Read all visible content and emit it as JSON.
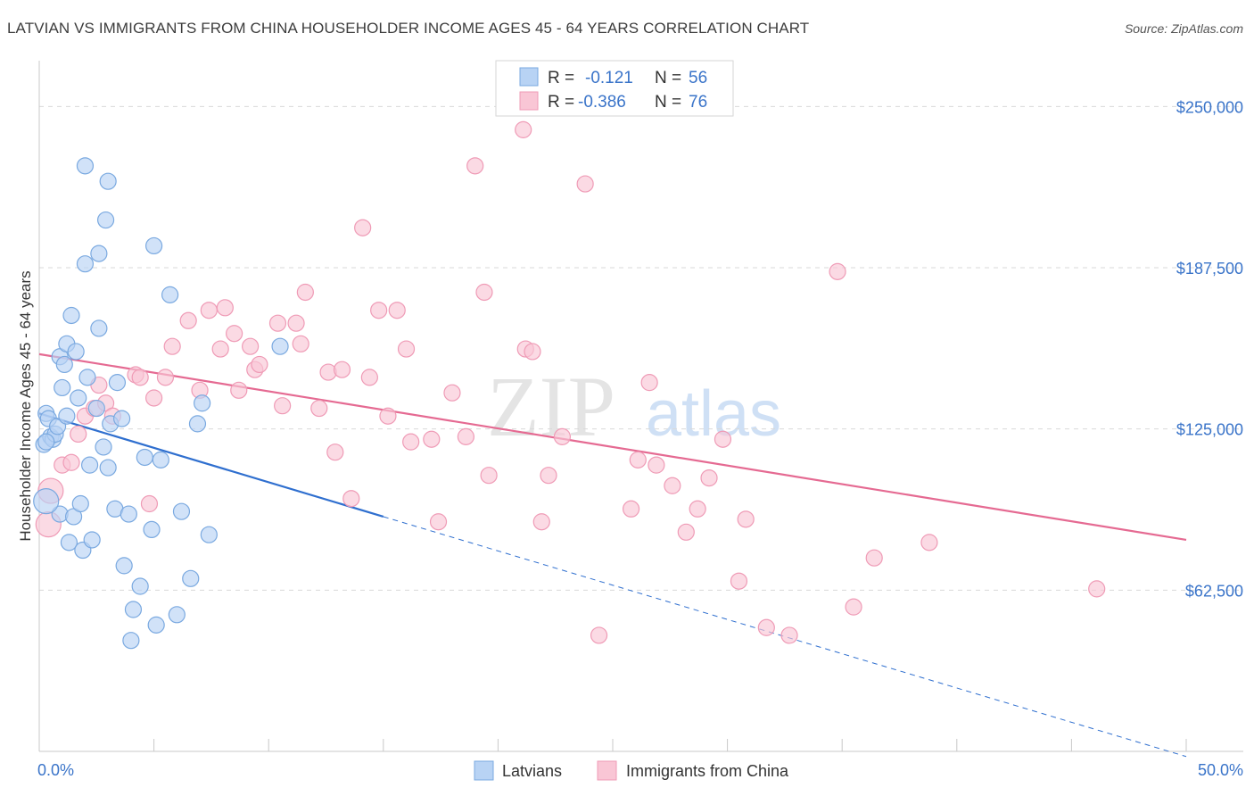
{
  "title": "LATVIAN VS IMMIGRANTS FROM CHINA HOUSEHOLDER INCOME AGES 45 - 64 YEARS CORRELATION CHART",
  "source": "Source: ZipAtlas.com",
  "watermark": {
    "zip": "ZIP",
    "atlas": "atlas"
  },
  "legend_top": [
    {
      "r_label": "R =",
      "r_value": "-0.121",
      "n_label": "N =",
      "n_value": "56"
    },
    {
      "r_label": "R =",
      "r_value": "-0.386",
      "n_label": "N =",
      "n_value": "76"
    }
  ],
  "legend_bottom": [
    "Latvians",
    "Immigrants from China"
  ],
  "colors": {
    "latvians_fill": "#b8d3f4",
    "latvians_stroke": "#7aa9e0",
    "latvians_line": "#2f6fcf",
    "china_fill": "#f9c6d5",
    "china_stroke": "#ef9bb6",
    "china_line": "#e56a92",
    "axis_label": "#3a74c9",
    "grid": "#d9d9d9"
  },
  "chart_data": {
    "type": "scatter",
    "title": "LATVIAN VS IMMIGRANTS FROM CHINA HOUSEHOLDER INCOME AGES 45 - 64 YEARS CORRELATION CHART",
    "xlabel": "",
    "ylabel": "Householder Income Ages 45 - 64 years",
    "xlim": [
      0,
      50
    ],
    "ylim": [
      0,
      265000
    ],
    "x_tick_labels": [
      "0.0%",
      "50.0%"
    ],
    "y_ticks": [
      62500,
      125000,
      187500,
      250000
    ],
    "y_tick_labels": [
      "$62,500",
      "$125,000",
      "$187,500",
      "$250,000"
    ],
    "series": [
      {
        "name": "Latvians",
        "R": -0.121,
        "N": 56,
        "trend": {
          "x0": 0,
          "y0": 131000,
          "x1": 15,
          "y1": 91000,
          "dash_to_x": 50,
          "dash_to_y": -2000
        },
        "points": [
          [
            0.2,
            119000
          ],
          [
            0.3,
            131000
          ],
          [
            0.4,
            129000
          ],
          [
            0.5,
            122000
          ],
          [
            0.6,
            121000
          ],
          [
            0.7,
            123000
          ],
          [
            0.8,
            126000
          ],
          [
            0.9,
            92000
          ],
          [
            0.9,
            153000
          ],
          [
            1.0,
            141000
          ],
          [
            1.1,
            150000
          ],
          [
            1.2,
            130000
          ],
          [
            1.2,
            158000
          ],
          [
            1.3,
            81000
          ],
          [
            1.4,
            169000
          ],
          [
            1.5,
            91000
          ],
          [
            1.6,
            155000
          ],
          [
            1.7,
            137000
          ],
          [
            1.8,
            96000
          ],
          [
            1.9,
            78000
          ],
          [
            2.0,
            189000
          ],
          [
            2.1,
            145000
          ],
          [
            2.2,
            111000
          ],
          [
            2.3,
            82000
          ],
          [
            2.5,
            133000
          ],
          [
            2.6,
            164000
          ],
          [
            2.6,
            193000
          ],
          [
            2.8,
            118000
          ],
          [
            2.9,
            206000
          ],
          [
            3.0,
            110000
          ],
          [
            3.1,
            127000
          ],
          [
            3.3,
            94000
          ],
          [
            3.4,
            143000
          ],
          [
            3.6,
            129000
          ],
          [
            3.7,
            72000
          ],
          [
            3.9,
            92000
          ],
          [
            4.0,
            43000
          ],
          [
            4.1,
            55000
          ],
          [
            4.4,
            64000
          ],
          [
            4.6,
            114000
          ],
          [
            4.9,
            86000
          ],
          [
            5.0,
            196000
          ],
          [
            5.1,
            49000
          ],
          [
            5.3,
            113000
          ],
          [
            5.7,
            177000
          ],
          [
            6.0,
            53000
          ],
          [
            6.2,
            93000
          ],
          [
            6.6,
            67000
          ],
          [
            6.9,
            127000
          ],
          [
            7.1,
            135000
          ],
          [
            7.4,
            84000
          ],
          [
            10.5,
            157000
          ],
          [
            2.0,
            227000
          ],
          [
            3.0,
            221000
          ],
          [
            0.3,
            97000
          ],
          [
            0.3,
            120000
          ]
        ]
      },
      {
        "name": "Immigrants from China",
        "R": -0.386,
        "N": 76,
        "trend": {
          "x0": 0,
          "y0": 154000,
          "x1": 50,
          "y1": 82000
        },
        "points": [
          [
            0.5,
            101000
          ],
          [
            0.4,
            88000
          ],
          [
            1.0,
            111000
          ],
          [
            1.4,
            112000
          ],
          [
            1.7,
            123000
          ],
          [
            2.0,
            130000
          ],
          [
            2.4,
            133000
          ],
          [
            2.6,
            142000
          ],
          [
            2.9,
            135000
          ],
          [
            3.2,
            130000
          ],
          [
            4.2,
            146000
          ],
          [
            4.4,
            145000
          ],
          [
            4.8,
            96000
          ],
          [
            5.0,
            137000
          ],
          [
            5.5,
            145000
          ],
          [
            5.8,
            157000
          ],
          [
            6.5,
            167000
          ],
          [
            7.0,
            140000
          ],
          [
            7.4,
            171000
          ],
          [
            7.9,
            156000
          ],
          [
            8.1,
            172000
          ],
          [
            8.5,
            162000
          ],
          [
            8.7,
            140000
          ],
          [
            9.2,
            157000
          ],
          [
            9.4,
            148000
          ],
          [
            9.6,
            150000
          ],
          [
            10.4,
            166000
          ],
          [
            10.6,
            134000
          ],
          [
            11.2,
            166000
          ],
          [
            11.4,
            158000
          ],
          [
            11.6,
            178000
          ],
          [
            12.2,
            133000
          ],
          [
            12.6,
            147000
          ],
          [
            12.9,
            116000
          ],
          [
            13.2,
            148000
          ],
          [
            13.6,
            98000
          ],
          [
            14.1,
            203000
          ],
          [
            14.4,
            145000
          ],
          [
            14.8,
            171000
          ],
          [
            15.2,
            130000
          ],
          [
            15.6,
            171000
          ],
          [
            16.0,
            156000
          ],
          [
            16.2,
            120000
          ],
          [
            17.1,
            121000
          ],
          [
            17.4,
            89000
          ],
          [
            18.0,
            139000
          ],
          [
            18.6,
            122000
          ],
          [
            19.0,
            227000
          ],
          [
            19.4,
            178000
          ],
          [
            19.6,
            107000
          ],
          [
            21.2,
            156000
          ],
          [
            21.5,
            155000
          ],
          [
            21.9,
            89000
          ],
          [
            22.2,
            107000
          ],
          [
            22.8,
            122000
          ],
          [
            23.8,
            220000
          ],
          [
            24.4,
            45000
          ],
          [
            25.8,
            94000
          ],
          [
            26.1,
            113000
          ],
          [
            26.6,
            143000
          ],
          [
            26.9,
            111000
          ],
          [
            27.6,
            103000
          ],
          [
            28.2,
            85000
          ],
          [
            28.7,
            94000
          ],
          [
            29.2,
            106000
          ],
          [
            29.8,
            121000
          ],
          [
            30.5,
            66000
          ],
          [
            30.8,
            90000
          ],
          [
            31.7,
            48000
          ],
          [
            32.7,
            45000
          ],
          [
            34.8,
            186000
          ],
          [
            35.5,
            56000
          ],
          [
            36.4,
            75000
          ],
          [
            38.8,
            81000
          ],
          [
            46.1,
            63000
          ],
          [
            21.1,
            241000
          ]
        ]
      }
    ]
  }
}
